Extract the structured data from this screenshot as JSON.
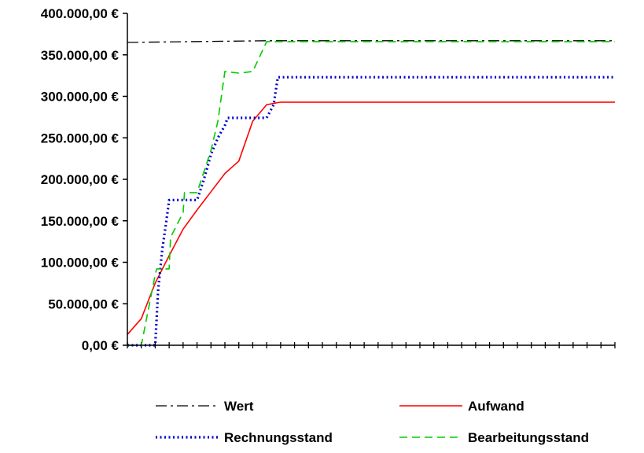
{
  "chart_data": {
    "type": "line",
    "title": "",
    "xlabel": "",
    "ylabel": "",
    "ylim": [
      0,
      400000
    ],
    "y_ticks": [
      "0,00 €",
      "50.000,00 €",
      "100.000,00 €",
      "150.000,00 €",
      "200.000,00 €",
      "250.000,00 €",
      "300.000,00 €",
      "350.000,00 €",
      "400.000,00 €"
    ],
    "xlim": [
      0,
      35
    ],
    "grid": false,
    "legend": "bottom",
    "series": [
      {
        "name": "Wert",
        "color": "#000000",
        "dash": "dash-dot",
        "x": [
          0,
          10,
          35
        ],
        "y": [
          365000,
          367000,
          367000
        ]
      },
      {
        "name": "Aufwand",
        "color": "#ff0000",
        "dash": "solid",
        "x": [
          0,
          1,
          2,
          3,
          4,
          5,
          6,
          7,
          8,
          9,
          10,
          11,
          35
        ],
        "y": [
          13000,
          32000,
          75000,
          108000,
          140000,
          163000,
          185000,
          207000,
          222000,
          270000,
          290000,
          293000,
          293000
        ]
      },
      {
        "name": "Rechnungsstand",
        "color": "#0000cc",
        "dash": "dot",
        "x": [
          0,
          2,
          2.2,
          2.5,
          2.8,
          3,
          5,
          5.5,
          6,
          6.5,
          7,
          7.2,
          9,
          10,
          10.5,
          10.8,
          35
        ],
        "y": [
          0,
          0,
          65000,
          115000,
          150000,
          175000,
          175000,
          200000,
          230000,
          250000,
          265000,
          274000,
          274000,
          274000,
          290000,
          323000,
          323000
        ]
      },
      {
        "name": "Bearbeitungsstand",
        "color": "#00cc00",
        "dash": "dash",
        "x": [
          0,
          1,
          2,
          2.1,
          3,
          3.1,
          4,
          4.1,
          5,
          6,
          6.5,
          7,
          8,
          9,
          10,
          35
        ],
        "y": [
          0,
          0,
          85000,
          92000,
          92000,
          130000,
          160000,
          184000,
          184000,
          235000,
          270000,
          330000,
          328000,
          330000,
          366000,
          366000
        ]
      }
    ]
  }
}
